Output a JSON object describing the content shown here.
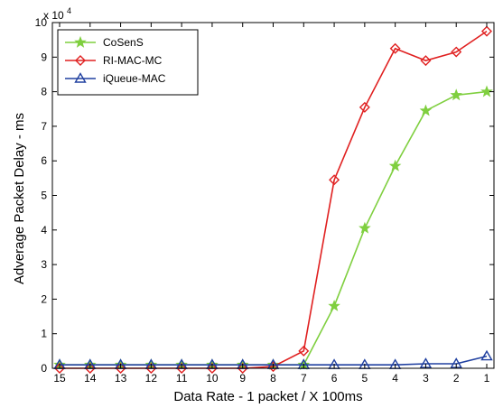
{
  "chart_data": {
    "type": "line",
    "xlabel": "Data Rate - 1 packet / X 100ms",
    "ylabel": "Adverage Packet Delay - ms",
    "y_multiplier_label": "x 10",
    "y_multiplier_exponent": "4",
    "categories": [
      "15",
      "14",
      "13",
      "12",
      "11",
      "10",
      "9",
      "8",
      "7",
      "6",
      "5",
      "4",
      "3",
      "2",
      "1"
    ],
    "ylim": [
      0,
      100000
    ],
    "yticks": [
      0,
      10000,
      20000,
      30000,
      40000,
      50000,
      60000,
      70000,
      80000,
      90000,
      100000
    ],
    "ytick_labels": [
      "0",
      "1",
      "2",
      "3",
      "4",
      "5",
      "6",
      "7",
      "8",
      "9",
      "10"
    ],
    "grid": false,
    "legend_position": "top-left",
    "series": [
      {
        "name": "CoSenS",
        "color": "#7fcf3f",
        "marker": "star",
        "values": [
          1000,
          1000,
          1000,
          1000,
          1000,
          1000,
          1000,
          1000,
          1000,
          18000,
          40500,
          58500,
          74500,
          79000,
          80000
        ]
      },
      {
        "name": "RI-MAC-MC",
        "color": "#e02020",
        "marker": "diamond",
        "values": [
          0,
          0,
          0,
          0,
          0,
          0,
          0,
          500,
          5000,
          54500,
          75500,
          92500,
          89000,
          91500,
          97500
        ]
      },
      {
        "name": "iQueue-MAC",
        "color": "#2040a0",
        "marker": "triangle",
        "values": [
          1000,
          1000,
          1000,
          1000,
          1000,
          1000,
          1000,
          1000,
          1000,
          1000,
          1000,
          1000,
          1300,
          1300,
          3500
        ]
      }
    ]
  }
}
